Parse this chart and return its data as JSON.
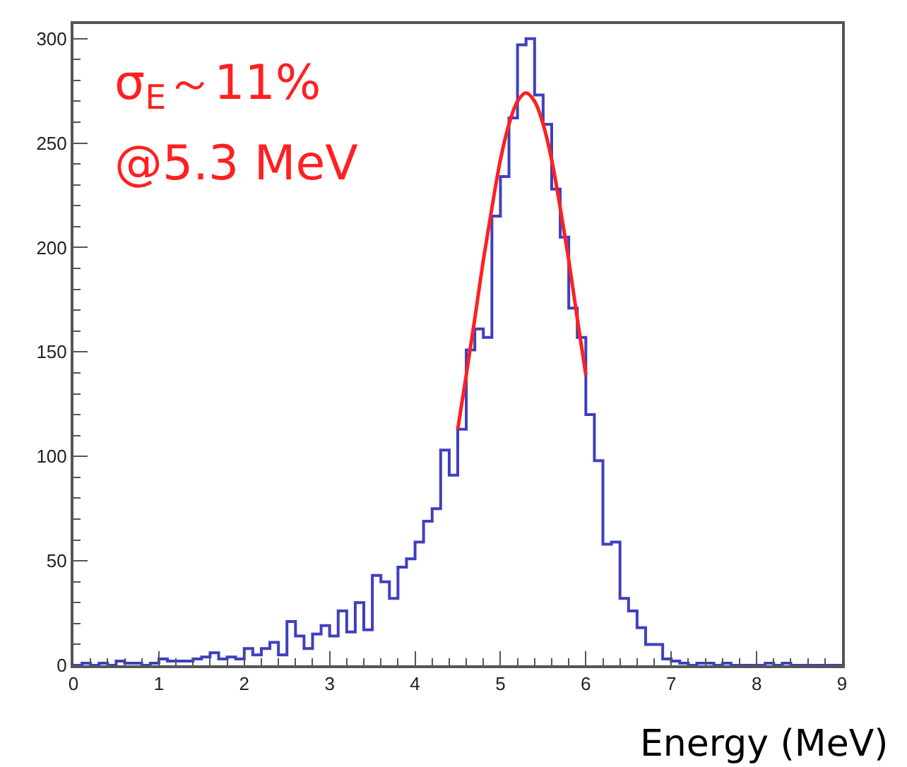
{
  "chart_data": {
    "type": "histogram",
    "xlabel": "Energy (MeV)",
    "annotations": [
      "σ$_{E}$～11%",
      "@5.3 MeV"
    ],
    "color": "#3f3fc0",
    "bins": [
      0,
      0.1,
      0.2,
      0.3,
      0.4,
      0.5,
      0.6,
      0.7,
      0.8,
      0.9,
      1,
      1.1,
      1.2,
      1.3,
      1.4,
      1.5,
      1.6,
      1.7,
      1.8,
      1.9,
      2,
      2.1,
      2.2,
      2.3,
      2.4,
      2.5,
      2.6,
      2.7,
      2.8,
      2.9,
      3,
      3.1,
      3.2,
      3.3,
      3.4,
      3.5,
      3.6,
      3.7,
      3.8,
      3.9,
      4,
      4.1,
      4.2,
      4.3,
      4.4,
      4.5,
      4.6,
      4.7,
      4.8,
      4.9,
      5,
      5.1,
      5.2,
      5.3,
      5.4,
      5.5,
      5.6,
      5.7,
      5.8,
      5.9,
      6,
      6.1,
      6.2,
      6.3,
      6.4,
      6.5,
      6.6,
      6.7,
      6.8,
      6.9,
      7,
      7.1,
      7.2,
      7.3,
      7.4,
      7.5,
      7.6,
      7.7,
      7.8,
      7.9,
      8,
      8.1,
      8.2,
      8.3,
      8.4,
      8.5,
      8.6,
      8.7,
      8.8,
      8.9,
      9
    ],
    "values": [
      0,
      1,
      0,
      1,
      0,
      2,
      1,
      1,
      0,
      1,
      3,
      2,
      2,
      2,
      3,
      4,
      6,
      3,
      4,
      3,
      8,
      5,
      8,
      11,
      5,
      21,
      14,
      8,
      15,
      19,
      14,
      26,
      16,
      30,
      17,
      43,
      40,
      32,
      47,
      51,
      59,
      69,
      75,
      103,
      91,
      113,
      151,
      161,
      157,
      215,
      234,
      262,
      297,
      300,
      273,
      259,
      228,
      205,
      171,
      157,
      120,
      98,
      58,
      59,
      32,
      26,
      18,
      10,
      10,
      3,
      2,
      1,
      0,
      1,
      1,
      0,
      1,
      0,
      0,
      0,
      0,
      1,
      0,
      1,
      0,
      0,
      0,
      0,
      0,
      0
    ],
    "series": [
      {
        "type": "line",
        "color": "#ff2020",
        "x": [
          4.5,
          4.6,
          4.7,
          4.8,
          4.9,
          5.0,
          5.1,
          5.2,
          5.3,
          5.4,
          5.5,
          5.6,
          5.7,
          5.8,
          5.9,
          6.0
        ],
        "values": [
          113,
          139,
          166,
          194,
          219,
          242,
          259,
          270,
          274,
          270,
          259,
          242,
          219,
          194,
          166,
          139
        ]
      }
    ],
    "xlim": [
      0,
      9
    ],
    "xticks": [
      0,
      1,
      2,
      3,
      4,
      5,
      6,
      7,
      8,
      9
    ],
    "ylim": [
      0,
      307
    ],
    "yticks": [
      0,
      50,
      100,
      150,
      200,
      250,
      300
    ]
  }
}
